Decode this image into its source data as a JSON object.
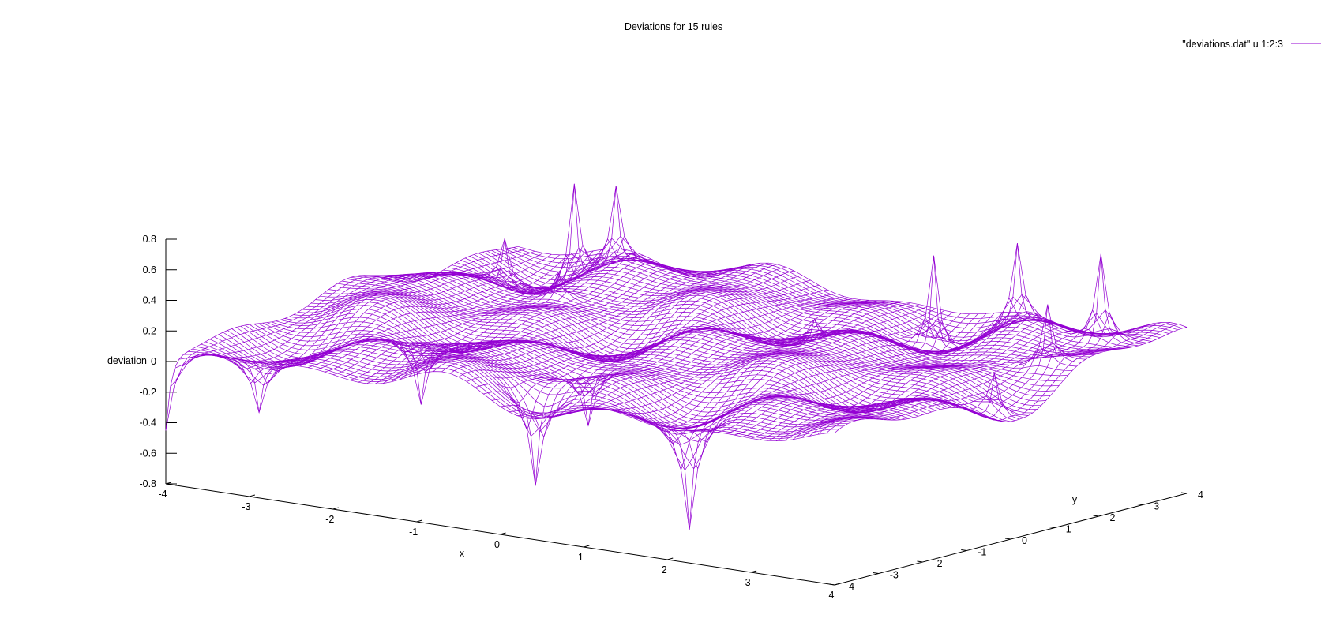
{
  "chart_data": {
    "type": "surface",
    "title": "Deviations for 15 rules",
    "xlabel": "x",
    "ylabel": "y",
    "zlabel": "deviation",
    "legend": {
      "label": "\"deviations.dat\" u 1:2:3",
      "position": "top-right"
    },
    "xlim": [
      -4,
      4
    ],
    "ylim": [
      -4,
      4
    ],
    "zlim": [
      -0.8,
      0.8
    ],
    "x_ticks": [
      "-4",
      "-3",
      "-2",
      "-1",
      "0",
      "1",
      "2",
      "3",
      "4"
    ],
    "y_ticks": [
      "-4",
      "-3",
      "-2",
      "-1",
      "0",
      "1",
      "2",
      "3",
      "4"
    ],
    "z_ticks": [
      "0.8",
      "0.6",
      "0.4",
      "0.2",
      "0",
      "-0.2",
      "-0.4",
      "-0.6",
      "-0.8"
    ],
    "grid": false,
    "colors": {
      "surface_top": "#9400d3",
      "surface_bottom": "#009e73"
    },
    "peaks": [
      {
        "x": -2.8,
        "y": 3.0,
        "z": 0.8
      },
      {
        "x": -2.3,
        "y": 3.0,
        "z": 0.65
      },
      {
        "x": -3.0,
        "y": 1.8,
        "z": 0.45
      },
      {
        "x": 1.5,
        "y": 3.0,
        "z": 0.78
      },
      {
        "x": 2.5,
        "y": 3.0,
        "z": 0.66
      },
      {
        "x": 3.5,
        "y": 3.0,
        "z": 0.76
      },
      {
        "x": 3.6,
        "y": 1.6,
        "z": 0.55
      },
      {
        "x": 3.7,
        "y": 0.2,
        "z": 0.42
      },
      {
        "x": -2.2,
        "y": 1.5,
        "z": 0.32
      },
      {
        "x": 0.6,
        "y": 2.0,
        "z": 0.28
      }
    ],
    "dips": [
      {
        "x": -4.0,
        "y": -4.0,
        "z": -0.45
      },
      {
        "x": -2.0,
        "y": -2.0,
        "z": -0.35
      },
      {
        "x": 0.0,
        "y": -2.0,
        "z": -0.3
      },
      {
        "x": 0.0,
        "y": -3.2,
        "z": -0.55
      },
      {
        "x": 2.0,
        "y": -3.5,
        "z": -0.65
      },
      {
        "x": -3.2,
        "y": -3.4,
        "z": -0.28
      }
    ]
  }
}
